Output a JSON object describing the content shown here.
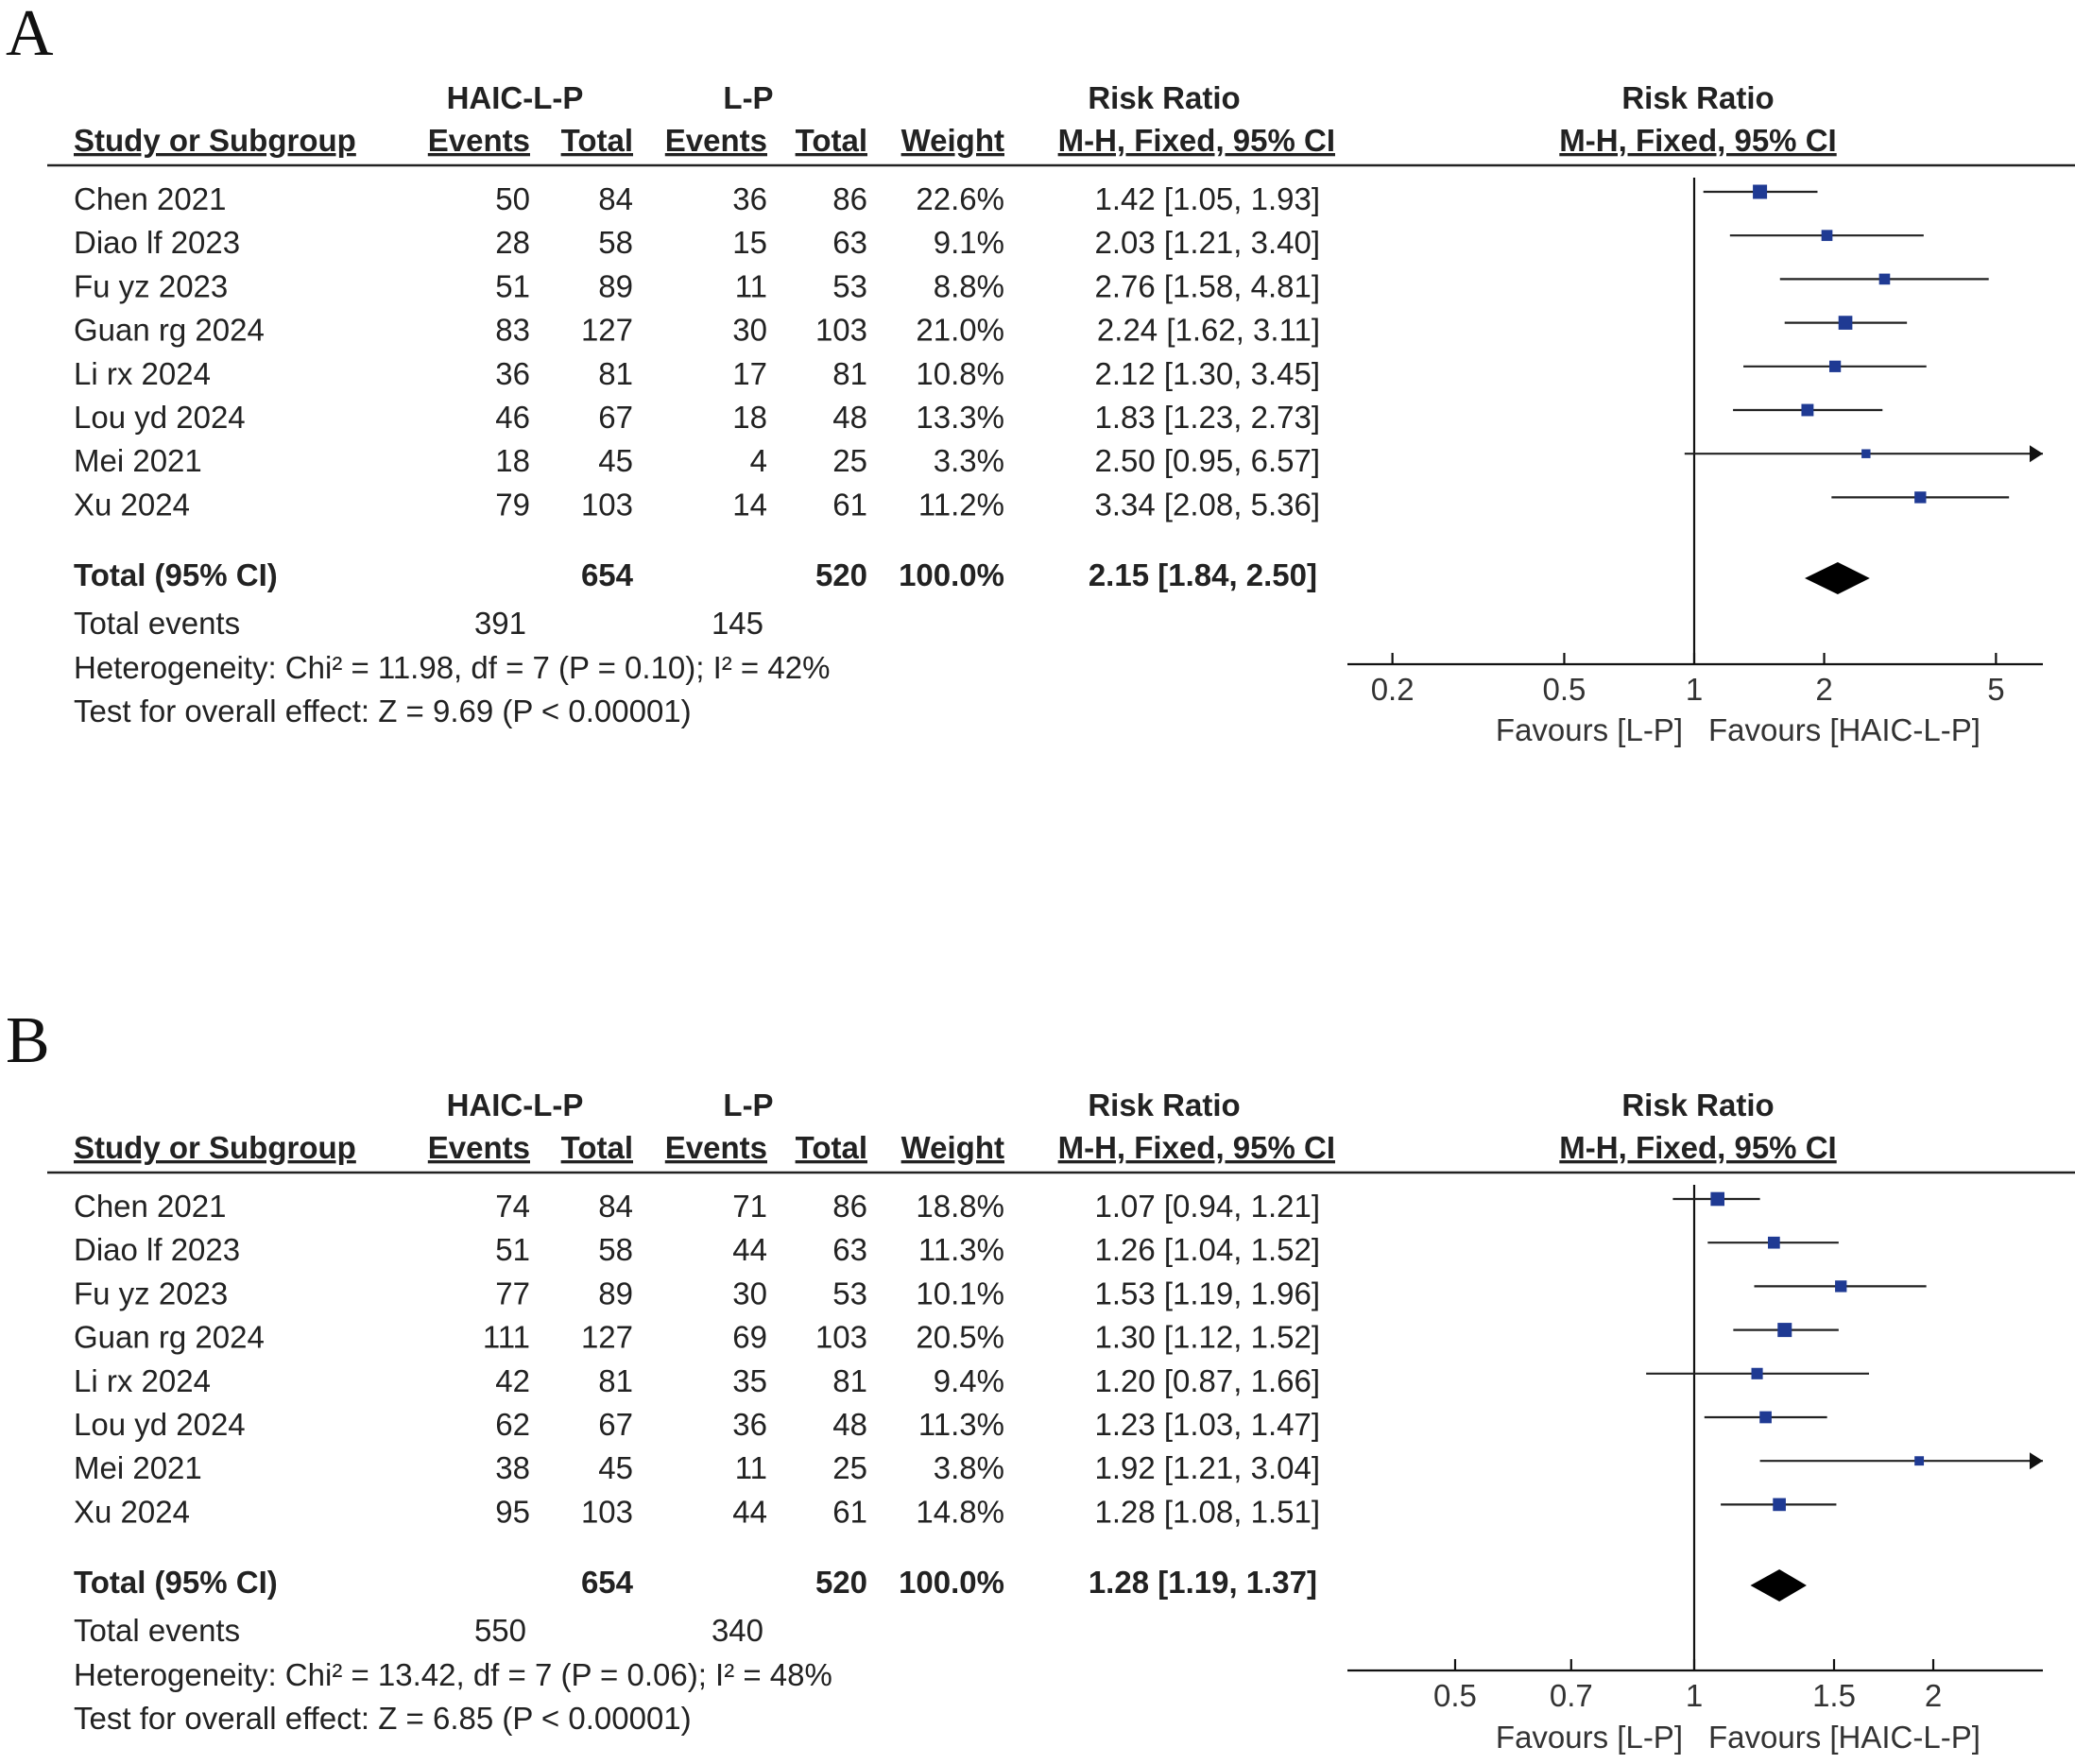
{
  "chart_data": [
    {
      "type": "forest",
      "panel_label": "A",
      "group_header_1": "HAIC-L-P",
      "group_header_2": "L-P",
      "estimate_header": "Risk Ratio",
      "plot_header": "Risk Ratio",
      "columns": [
        "Study or Subgroup",
        "Events",
        "Total",
        "Events",
        "Total",
        "Weight",
        "M-H, Fixed, 95% CI"
      ],
      "plot_subheader": "M-H, Fixed, 95% CI",
      "studies": [
        {
          "name": "Chen 2021",
          "e1": "50",
          "n1": "84",
          "e2": "36",
          "n2": "86",
          "weight": "22.6%",
          "ci_text": "1.42 [1.05, 1.93]",
          "rr": 1.42,
          "lo": 1.05,
          "hi": 1.93,
          "w": 22.6
        },
        {
          "name": "Diao lf 2023",
          "e1": "28",
          "n1": "58",
          "e2": "15",
          "n2": "63",
          "weight": "9.1%",
          "ci_text": "2.03 [1.21, 3.40]",
          "rr": 2.03,
          "lo": 1.21,
          "hi": 3.4,
          "w": 9.1
        },
        {
          "name": "Fu yz 2023",
          "e1": "51",
          "n1": "89",
          "e2": "11",
          "n2": "53",
          "weight": "8.8%",
          "ci_text": "2.76 [1.58, 4.81]",
          "rr": 2.76,
          "lo": 1.58,
          "hi": 4.81,
          "w": 8.8
        },
        {
          "name": "Guan rg 2024",
          "e1": "83",
          "n1": "127",
          "e2": "30",
          "n2": "103",
          "weight": "21.0%",
          "ci_text": "2.24 [1.62, 3.11]",
          "rr": 2.24,
          "lo": 1.62,
          "hi": 3.11,
          "w": 21.0
        },
        {
          "name": "Li rx 2024",
          "e1": "36",
          "n1": "81",
          "e2": "17",
          "n2": "81",
          "weight": "10.8%",
          "ci_text": "2.12 [1.30, 3.45]",
          "rr": 2.12,
          "lo": 1.3,
          "hi": 3.45,
          "w": 10.8
        },
        {
          "name": "Lou yd 2024",
          "e1": "46",
          "n1": "67",
          "e2": "18",
          "n2": "48",
          "weight": "13.3%",
          "ci_text": "1.83 [1.23, 2.73]",
          "rr": 1.83,
          "lo": 1.23,
          "hi": 2.73,
          "w": 13.3
        },
        {
          "name": "Mei 2021",
          "e1": "18",
          "n1": "45",
          "e2": "4",
          "n2": "25",
          "weight": "3.3%",
          "ci_text": "2.50 [0.95, 6.57]",
          "rr": 2.5,
          "lo": 0.95,
          "hi": 6.57,
          "w": 3.3
        },
        {
          "name": "Xu 2024",
          "e1": "79",
          "n1": "103",
          "e2": "14",
          "n2": "61",
          "weight": "11.2%",
          "ci_text": "3.34 [2.08, 5.36]",
          "rr": 3.34,
          "lo": 2.08,
          "hi": 5.36,
          "w": 11.2
        }
      ],
      "total": {
        "label": "Total (95% CI)",
        "n1": "654",
        "n2": "520",
        "weight": "100.0%",
        "ci_text": "2.15 [1.84, 2.50]",
        "rr": 2.15,
        "lo": 1.84,
        "hi": 2.5
      },
      "total_events": {
        "label": "Total events",
        "e1": "391",
        "e2": "145"
      },
      "heterogeneity": "Heterogeneity: Chi² = 11.98, df = 7 (P = 0.10); I² = 42%",
      "overall_effect": "Test for overall effect: Z = 9.69 (P < 0.00001)",
      "axis": {
        "scale": "log",
        "min": 0.15,
        "max": 6.0,
        "ticks": [
          0.2,
          0.5,
          1,
          2,
          5
        ],
        "tick_labels": [
          "0.2",
          "0.5",
          "1",
          "2",
          "5"
        ]
      },
      "favours_left": "Favours [L-P]",
      "favours_right": "Favours [HAIC-L-P]"
    },
    {
      "type": "forest",
      "panel_label": "B",
      "group_header_1": "HAIC-L-P",
      "group_header_2": "L-P",
      "estimate_header": "Risk Ratio",
      "plot_header": "Risk Ratio",
      "columns": [
        "Study or Subgroup",
        "Events",
        "Total",
        "Events",
        "Total",
        "Weight",
        "M-H, Fixed, 95% CI"
      ],
      "plot_subheader": "M-H, Fixed, 95% CI",
      "studies": [
        {
          "name": "Chen 2021",
          "e1": "74",
          "n1": "84",
          "e2": "71",
          "n2": "86",
          "weight": "18.8%",
          "ci_text": "1.07 [0.94, 1.21]",
          "rr": 1.07,
          "lo": 0.94,
          "hi": 1.21,
          "w": 18.8
        },
        {
          "name": "Diao lf 2023",
          "e1": "51",
          "n1": "58",
          "e2": "44",
          "n2": "63",
          "weight": "11.3%",
          "ci_text": "1.26 [1.04, 1.52]",
          "rr": 1.26,
          "lo": 1.04,
          "hi": 1.52,
          "w": 11.3
        },
        {
          "name": "Fu yz 2023",
          "e1": "77",
          "n1": "89",
          "e2": "30",
          "n2": "53",
          "weight": "10.1%",
          "ci_text": "1.53 [1.19, 1.96]",
          "rr": 1.53,
          "lo": 1.19,
          "hi": 1.96,
          "w": 10.1
        },
        {
          "name": "Guan rg 2024",
          "e1": "111",
          "n1": "127",
          "e2": "69",
          "n2": "103",
          "weight": "20.5%",
          "ci_text": "1.30 [1.12, 1.52]",
          "rr": 1.3,
          "lo": 1.12,
          "hi": 1.52,
          "w": 20.5
        },
        {
          "name": "Li rx 2024",
          "e1": "42",
          "n1": "81",
          "e2": "35",
          "n2": "81",
          "weight": "9.4%",
          "ci_text": "1.20 [0.87, 1.66]",
          "rr": 1.2,
          "lo": 0.87,
          "hi": 1.66,
          "w": 9.4
        },
        {
          "name": "Lou yd 2024",
          "e1": "62",
          "n1": "67",
          "e2": "36",
          "n2": "48",
          "weight": "11.3%",
          "ci_text": "1.23 [1.03, 1.47]",
          "rr": 1.23,
          "lo": 1.03,
          "hi": 1.47,
          "w": 11.3
        },
        {
          "name": "Mei 2021",
          "e1": "38",
          "n1": "45",
          "e2": "11",
          "n2": "25",
          "weight": "3.8%",
          "ci_text": "1.92 [1.21, 3.04]",
          "rr": 1.92,
          "lo": 1.21,
          "hi": 3.04,
          "w": 3.8
        },
        {
          "name": "Xu 2024",
          "e1": "95",
          "n1": "103",
          "e2": "44",
          "n2": "61",
          "weight": "14.8%",
          "ci_text": "1.28 [1.08, 1.51]",
          "rr": 1.28,
          "lo": 1.08,
          "hi": 1.51,
          "w": 14.8
        }
      ],
      "total": {
        "label": "Total (95% CI)",
        "n1": "654",
        "n2": "520",
        "weight": "100.0%",
        "ci_text": "1.28 [1.19, 1.37]",
        "rr": 1.28,
        "lo": 1.19,
        "hi": 1.37
      },
      "total_events": {
        "label": "Total events",
        "e1": "550",
        "e2": "340"
      },
      "heterogeneity": "Heterogeneity: Chi² = 13.42, df = 7 (P = 0.06); I² = 48%",
      "overall_effect": "Test for overall effect: Z = 6.85 (P < 0.00001)",
      "axis": {
        "scale": "log",
        "min": 0.35,
        "max": 2.6,
        "ticks": [
          0.5,
          0.7,
          1,
          1.5,
          2
        ],
        "tick_labels": [
          "0.5",
          "0.7",
          "1",
          "1.5",
          "2"
        ]
      },
      "favours_left": "Favours [L-P]",
      "favours_right": "Favours [HAIC-L-P]"
    }
  ],
  "colors": {
    "marker": "#1f3a93",
    "line": "#222222",
    "diamond": "#000000"
  }
}
